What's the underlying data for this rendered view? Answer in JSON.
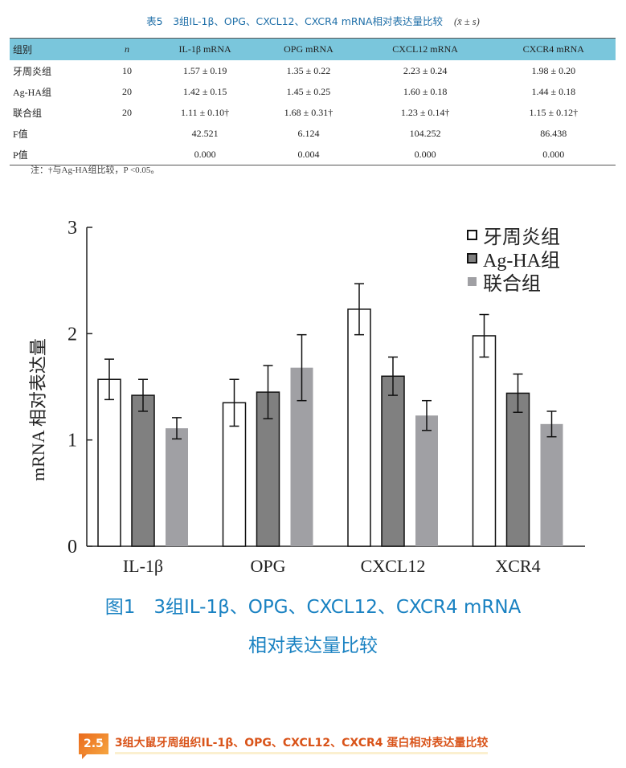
{
  "table": {
    "caption": "表5　3组IL-1β、OPG、CXCL12、CXCR4 mRNA相对表达量比较",
    "caption_stat": "(x̄ ± s)",
    "headers": [
      "组别",
      "n",
      "IL-1β mRNA",
      "OPG mRNA",
      "CXCL12 mRNA",
      "CXCR4 mRNA"
    ],
    "rows": [
      [
        "牙周炎组",
        "10",
        "1.57 ± 0.19",
        "1.35 ± 0.22",
        "2.23 ± 0.24",
        "1.98 ± 0.20"
      ],
      [
        "Ag-HA组",
        "20",
        "1.42 ± 0.15",
        "1.45 ± 0.25",
        "1.60 ± 0.18",
        "1.44 ± 0.18"
      ],
      [
        "联合组",
        "20",
        "1.11 ± 0.10†",
        "1.68 ± 0.31†",
        "1.23 ± 0.14†",
        "1.15 ± 0.12†"
      ],
      [
        "F值",
        "",
        "42.521",
        "6.124",
        "104.252",
        "86.438"
      ],
      [
        "P值",
        "",
        "0.000",
        "0.004",
        "0.000",
        "0.000"
      ]
    ],
    "note": "注：†与Ag-HA组比较，P <0.05。"
  },
  "chart_data": {
    "type": "bar",
    "categories": [
      "IL-1β",
      "OPG",
      "CXCL12",
      "XCR4"
    ],
    "ylabel": "mRNA 相对表达量",
    "ylim": [
      0,
      3
    ],
    "yticks": [
      "0",
      "1",
      "2",
      "3"
    ],
    "legend_position": "top-right",
    "series": [
      {
        "name": "牙周炎组",
        "values": [
          1.57,
          1.35,
          2.23,
          1.98
        ],
        "errors": [
          0.19,
          0.22,
          0.24,
          0.2
        ],
        "color": "#ffffff"
      },
      {
        "name": "Ag-HA组",
        "values": [
          1.42,
          1.45,
          1.6,
          1.44
        ],
        "errors": [
          0.15,
          0.25,
          0.18,
          0.18
        ],
        "color": "#808080"
      },
      {
        "name": "联合组",
        "values": [
          1.11,
          1.68,
          1.23,
          1.15
        ],
        "errors": [
          0.1,
          0.31,
          0.14,
          0.12
        ],
        "color": "#a0a0a4"
      }
    ]
  },
  "figure": {
    "caption_line1": "图1　3组IL-1β、OPG、CXCL12、CXCR4 mRNA",
    "caption_line2": "相对表达量比较"
  },
  "section": {
    "number": "2.5",
    "title": "3组大鼠牙周组织IL-1β、OPG、CXCL12、CXCR4 蛋白相对表达量比较"
  },
  "colors": {
    "header_bg": "#7ac6dc",
    "caption_blue": "#1a82c2",
    "section_orange": "#d9541a"
  }
}
